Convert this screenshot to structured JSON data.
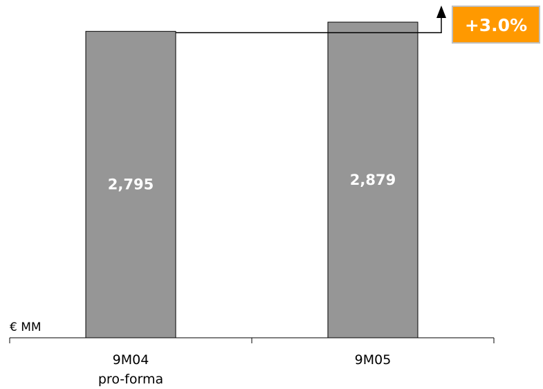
{
  "chart_data": {
    "type": "bar",
    "unit": "€ MM",
    "categories": [
      "9M04 pro-forma",
      "9M05"
    ],
    "category_lines": [
      [
        "9M04",
        "pro-forma"
      ],
      [
        "9M05"
      ]
    ],
    "values": [
      2795,
      2879
    ],
    "value_labels": [
      "2,795",
      "2,879"
    ],
    "title": "",
    "xlabel": "",
    "ylabel": "",
    "annotation": "+3.0%",
    "colors": {
      "bar": "#969696",
      "bar_stroke": "#000000",
      "badge": "#ff9900",
      "badge_border": "#c0c0c0"
    }
  }
}
